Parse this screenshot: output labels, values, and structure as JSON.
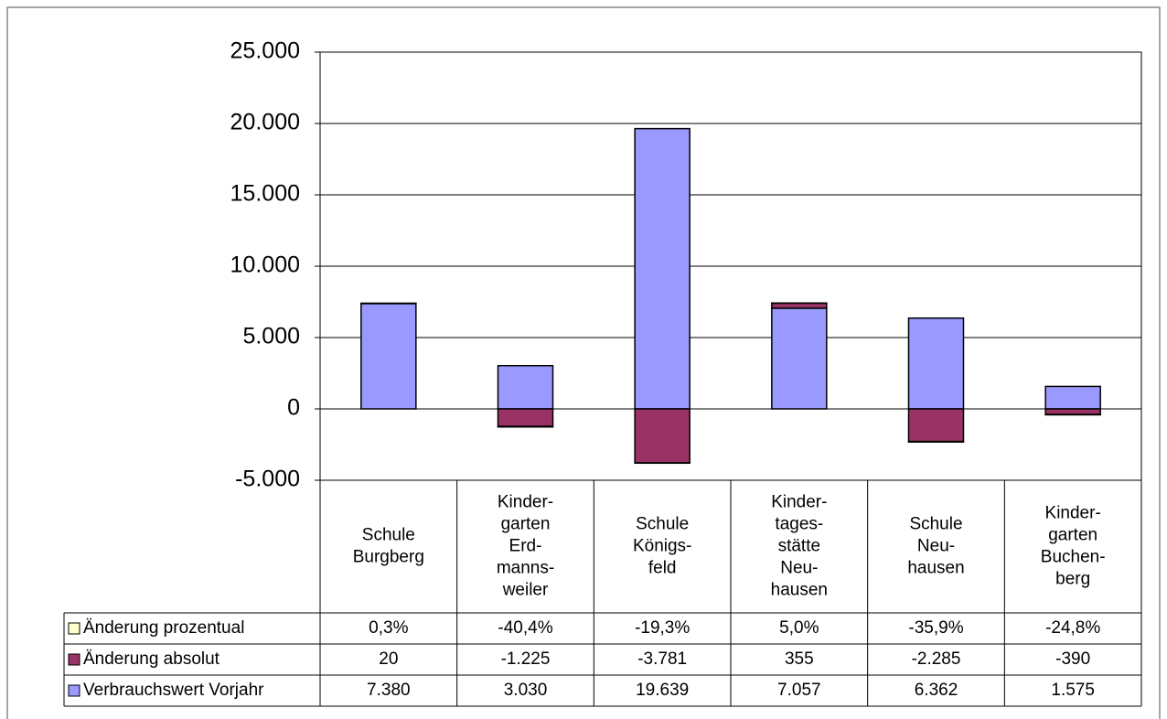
{
  "chart_data": {
    "type": "bar",
    "stacked": true,
    "categories": [
      [
        "Schule",
        "Burgberg"
      ],
      [
        "Kinder-",
        "garten",
        "Erd-",
        "manns-",
        "weiler"
      ],
      [
        "Schule",
        "Königs-",
        "feld"
      ],
      [
        "Kinder-",
        "tages-",
        "stätte",
        "Neu-",
        "hausen"
      ],
      [
        "Schule",
        "Neu-",
        "hausen"
      ],
      [
        "Kinder-",
        "garten",
        "Buchen-",
        "berg"
      ]
    ],
    "series": [
      {
        "name": "Änderung prozentual",
        "color": "#ffffcc",
        "values": [
          0.3,
          -40.4,
          -19.3,
          5.0,
          -35.9,
          -24.8
        ],
        "value_labels": [
          "0,3%",
          "-40,4%",
          "-19,3%",
          "5,0%",
          "-35,9%",
          "-24,8%"
        ]
      },
      {
        "name": "Änderung absolut",
        "color": "#993366",
        "values": [
          20,
          -1225,
          -3781,
          355,
          -2285,
          -390
        ],
        "value_labels": [
          "20",
          "-1.225",
          "-3.781",
          "355",
          "-2.285",
          "-390"
        ]
      },
      {
        "name": "Verbrauchswert Vorjahr",
        "color": "#9999ff",
        "values": [
          7380,
          3030,
          19639,
          7057,
          6362,
          1575
        ],
        "value_labels": [
          "7.380",
          "3.030",
          "19.639",
          "7.057",
          "6.362",
          "1.575"
        ]
      }
    ],
    "ylim": [
      -5000,
      25000
    ],
    "yticks": [
      {
        "value": -5000,
        "label": "-5.000"
      },
      0,
      {
        "value": 5000,
        "label": "5.000"
      },
      {
        "value": 10000,
        "label": "10.000"
      },
      {
        "value": 15000,
        "label": "15.000"
      },
      {
        "value": 20000,
        "label": "20.000"
      },
      {
        "value": 25000,
        "label": "25.000"
      }
    ],
    "grid": true
  }
}
